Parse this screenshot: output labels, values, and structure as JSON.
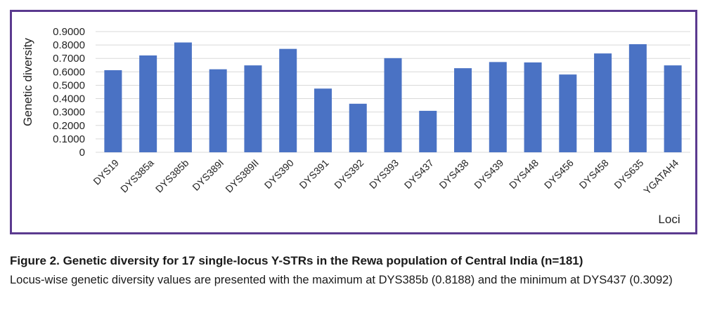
{
  "chart_data": {
    "type": "bar",
    "title": "",
    "ylabel": "Genetic diversity",
    "xlabel": "Loci",
    "ylim": [
      0,
      0.9
    ],
    "yticks": [
      "0",
      "0.1000",
      "0.2000",
      "0.3000",
      "0.4000",
      "0.5000",
      "0.6000",
      "0.7000",
      "0.8000",
      "0.9000"
    ],
    "grid": true,
    "bar_color": "#4a72c4",
    "categories": [
      "DYS19",
      "DYS385a",
      "DYS385b",
      "DYS389I",
      "DYS389II",
      "DYS390",
      "DYS391",
      "DYS392",
      "DYS393",
      "DYS437",
      "DYS438",
      "DYS439",
      "DYS448",
      "DYS456",
      "DYS458",
      "DYS635",
      "YGATAH4"
    ],
    "values": [
      0.612,
      0.722,
      0.8188,
      0.619,
      0.648,
      0.771,
      0.475,
      0.362,
      0.702,
      0.3092,
      0.627,
      0.673,
      0.67,
      0.58,
      0.737,
      0.806,
      0.648
    ]
  },
  "caption": {
    "title": "Figure 2. Genetic diversity for 17 single-locus Y-STRs in the Rewa population of Central India (n=181)",
    "body": "Locus-wise genetic diversity values are presented with the maximum at DYS385b (0.8188) and the minimum at DYS437 (0.3092)"
  }
}
